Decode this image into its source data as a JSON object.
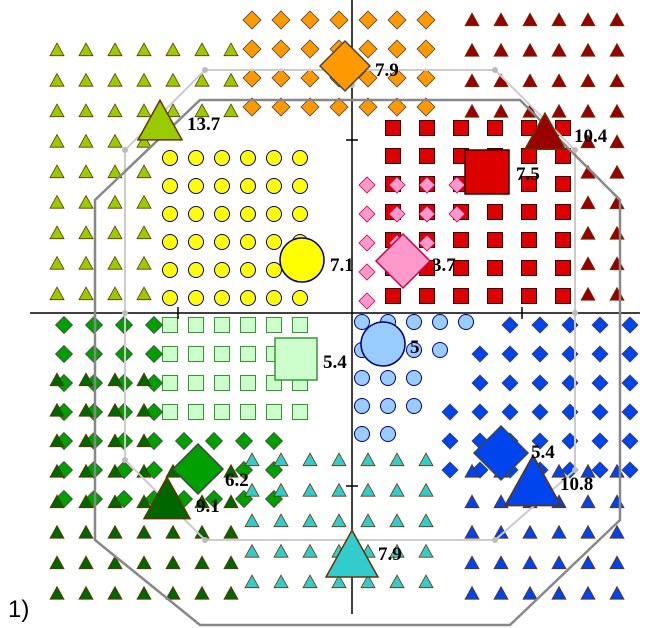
{
  "panel_label": "1)",
  "colors": {
    "olive": "#99cc00",
    "orange": "#ff9900",
    "darkred": "#990000",
    "yellow": "#ffff00",
    "pink": "#ff99cc",
    "red": "#dd0000",
    "green": "#00a000",
    "palegreen": "#ccffcc",
    "lightblue": "#99ccff",
    "blue": "#0044ee",
    "darkgreen": "#006600",
    "teal": "#33cccc",
    "gray": "#999999",
    "lightgray": "#cccccc",
    "border": "#990000"
  },
  "clusters": [
    {
      "id": "olive-triangles",
      "shape": "triangle",
      "color": "olive",
      "label": "13.7"
    },
    {
      "id": "orange-diamonds",
      "shape": "diamond",
      "color": "orange",
      "label": "7.9"
    },
    {
      "id": "darkred-triangles",
      "shape": "triangle",
      "color": "darkred",
      "label": "10.4"
    },
    {
      "id": "red-squares",
      "shape": "square",
      "color": "red",
      "label": "7.5"
    },
    {
      "id": "yellow-circles",
      "shape": "circle",
      "color": "yellow",
      "label": "7.1"
    },
    {
      "id": "pink-diamonds",
      "shape": "diamond",
      "color": "pink",
      "label": "3.7"
    },
    {
      "id": "palegreen-squares",
      "shape": "square",
      "color": "palegreen",
      "label": "5.4"
    },
    {
      "id": "lightblue-circles",
      "shape": "circle",
      "color": "lightblue",
      "label": "5"
    },
    {
      "id": "green-diamonds",
      "shape": "diamond",
      "color": "green",
      "label": "6.2"
    },
    {
      "id": "darkgreen-triangles",
      "shape": "triangle",
      "color": "darkgreen",
      "label": "9.1"
    },
    {
      "id": "blue-diamonds",
      "shape": "diamond",
      "color": "blue",
      "label": "5.4"
    },
    {
      "id": "blue-triangles",
      "shape": "triangle",
      "color": "blue",
      "label": "10.8"
    },
    {
      "id": "teal-triangles",
      "shape": "triangle",
      "color": "teal",
      "label": "7.9"
    }
  ]
}
